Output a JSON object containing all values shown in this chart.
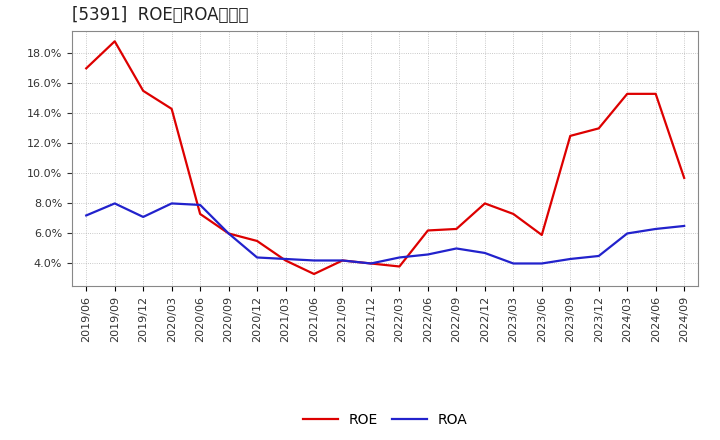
{
  "title": "[5391]  ROE、ROAの推移",
  "dates": [
    "2019/06",
    "2019/09",
    "2019/12",
    "2020/03",
    "2020/06",
    "2020/09",
    "2020/12",
    "2021/03",
    "2021/06",
    "2021/09",
    "2021/12",
    "2022/03",
    "2022/06",
    "2022/09",
    "2022/12",
    "2023/03",
    "2023/06",
    "2023/09",
    "2023/12",
    "2024/03",
    "2024/06",
    "2024/09"
  ],
  "roe_values": [
    0.17,
    0.188,
    0.155,
    0.143,
    0.073,
    0.06,
    0.055,
    0.042,
    0.033,
    0.042,
    0.04,
    0.038,
    0.062,
    0.063,
    0.08,
    0.073,
    0.059,
    0.125,
    0.13,
    0.153,
    0.153,
    0.097
  ],
  "roa_values": [
    0.072,
    0.08,
    0.071,
    0.08,
    0.079,
    0.06,
    0.044,
    0.043,
    0.042,
    0.042,
    0.04,
    0.044,
    0.046,
    0.05,
    0.047,
    0.04,
    0.04,
    0.043,
    0.045,
    0.06,
    0.063,
    0.065
  ],
  "roe_color": "#dd0000",
  "roa_color": "#2222cc",
  "background_color": "#ffffff",
  "plot_bg_color": "#ffffff",
  "grid_color": "#999999",
  "ylim_low": 0.025,
  "ylim_high": 0.195,
  "yticks": [
    0.04,
    0.06,
    0.08,
    0.1,
    0.12,
    0.14,
    0.16,
    0.18
  ],
  "legend_roe": "ROE",
  "legend_roa": "ROA",
  "title_fontsize": 12,
  "tick_fontsize": 8,
  "legend_fontsize": 10,
  "line_width": 1.6
}
